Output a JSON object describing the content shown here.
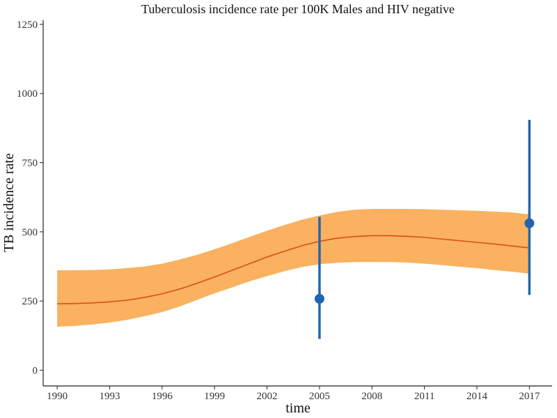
{
  "chart_data": {
    "type": "line",
    "title": "Tuberculosis incidence rate per 100K Males and HIV negative",
    "xlabel": "time",
    "ylabel": "TB incidence rate",
    "xlim": [
      1989.2,
      2018.3
    ],
    "ylim": [
      -57,
      1265
    ],
    "x_ticks": [
      1990,
      1993,
      1996,
      1999,
      2002,
      2005,
      2008,
      2011,
      2014,
      2017
    ],
    "y_ticks": [
      0,
      250,
      500,
      750,
      1000,
      1250
    ],
    "grid": false,
    "legend": "none",
    "colors": {
      "band": "#fab160",
      "line": "#d94e1a",
      "points": "#2166ac"
    },
    "series": [
      {
        "type": "line_with_band",
        "x": [
          1990,
          1991,
          1992,
          1993,
          1994,
          1995,
          1996,
          1997,
          1998,
          1999,
          2000,
          2001,
          2002,
          2003,
          2004,
          2005,
          2006,
          2007,
          2008,
          2009,
          2010,
          2011,
          2012,
          2013,
          2014,
          2015,
          2016,
          2017
        ],
        "y": [
          240,
          241,
          243,
          247,
          253,
          263,
          276,
          293,
          314,
          337,
          361,
          385,
          409,
          430,
          450,
          466,
          477,
          483,
          486,
          486,
          484,
          480,
          474,
          468,
          462,
          456,
          449,
          442
        ],
        "lower": [
          157,
          160,
          165,
          172,
          182,
          195,
          210,
          230,
          254,
          278,
          299,
          321,
          340,
          358,
          373,
          383,
          388,
          391,
          391,
          391,
          389,
          385,
          380,
          374,
          369,
          362,
          356,
          349
        ],
        "upper": [
          361,
          361,
          362,
          364,
          369,
          375,
          385,
          400,
          417,
          437,
          459,
          482,
          504,
          525,
          544,
          559,
          572,
          580,
          583,
          583,
          583,
          582,
          580,
          578,
          576,
          573,
          570,
          563
        ]
      },
      {
        "type": "points_with_error",
        "x": [
          2005,
          2017
        ],
        "y": [
          258,
          531
        ],
        "lower": [
          113,
          272
        ],
        "upper": [
          554,
          905
        ]
      }
    ]
  }
}
